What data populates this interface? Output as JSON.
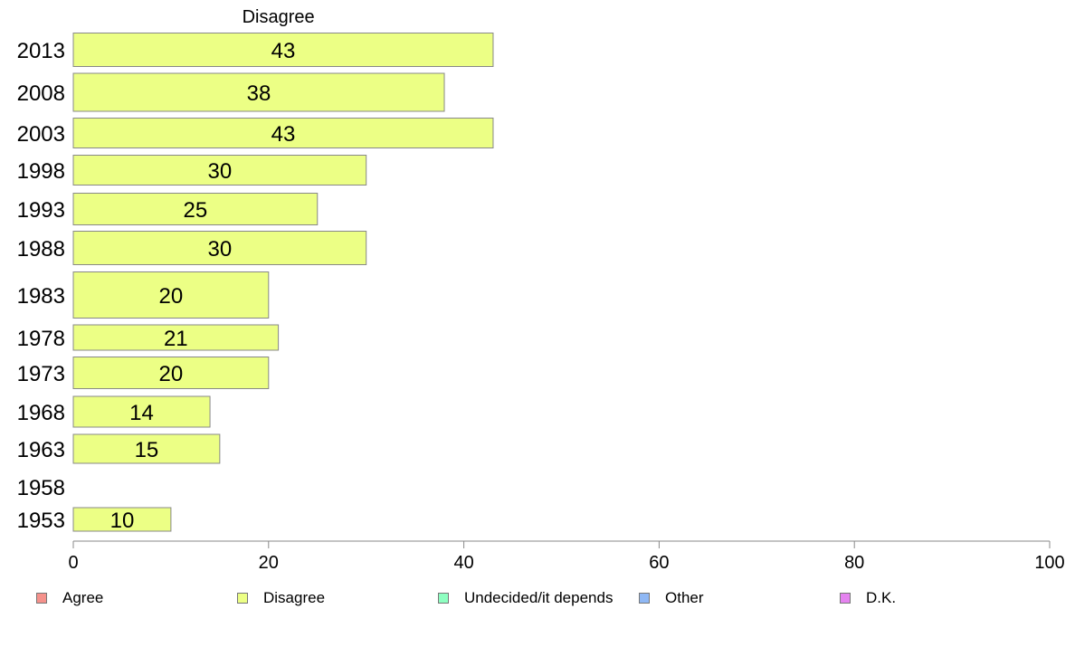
{
  "chart_data": {
    "type": "bar",
    "orientation": "horizontal",
    "title": "Disagree",
    "categories": [
      "2013",
      "2008",
      "2003",
      "1998",
      "1993",
      "1988",
      "1983",
      "1978",
      "1973",
      "1968",
      "1963",
      "1958",
      "1953"
    ],
    "series": [
      {
        "name": "Disagree",
        "values": [
          43,
          38,
          43,
          30,
          25,
          30,
          20,
          21,
          20,
          14,
          15,
          null,
          10
        ]
      }
    ],
    "data_labels": [
      "43",
      "38",
      "43",
      "30",
      "25",
      "30",
      "20",
      "21",
      "20",
      "14",
      "15",
      "",
      "10"
    ],
    "xlim": [
      0,
      100
    ],
    "xticks": [
      0,
      20,
      40,
      60,
      80,
      100
    ],
    "xlabel": "",
    "ylabel": "",
    "grid": false,
    "legend_position": "bottom",
    "bar_color": "#ecff85",
    "bar_border_color": "#888888"
  },
  "legend": {
    "items": [
      {
        "label": "Agree",
        "color": "#f5918b"
      },
      {
        "label": "Disagree",
        "color": "#ecff85"
      },
      {
        "label": "Undecided/it depends",
        "color": "#8effc1"
      },
      {
        "label": "Other",
        "color": "#8fb8f5"
      },
      {
        "label": "D.K.",
        "color": "#e583f0"
      }
    ]
  }
}
